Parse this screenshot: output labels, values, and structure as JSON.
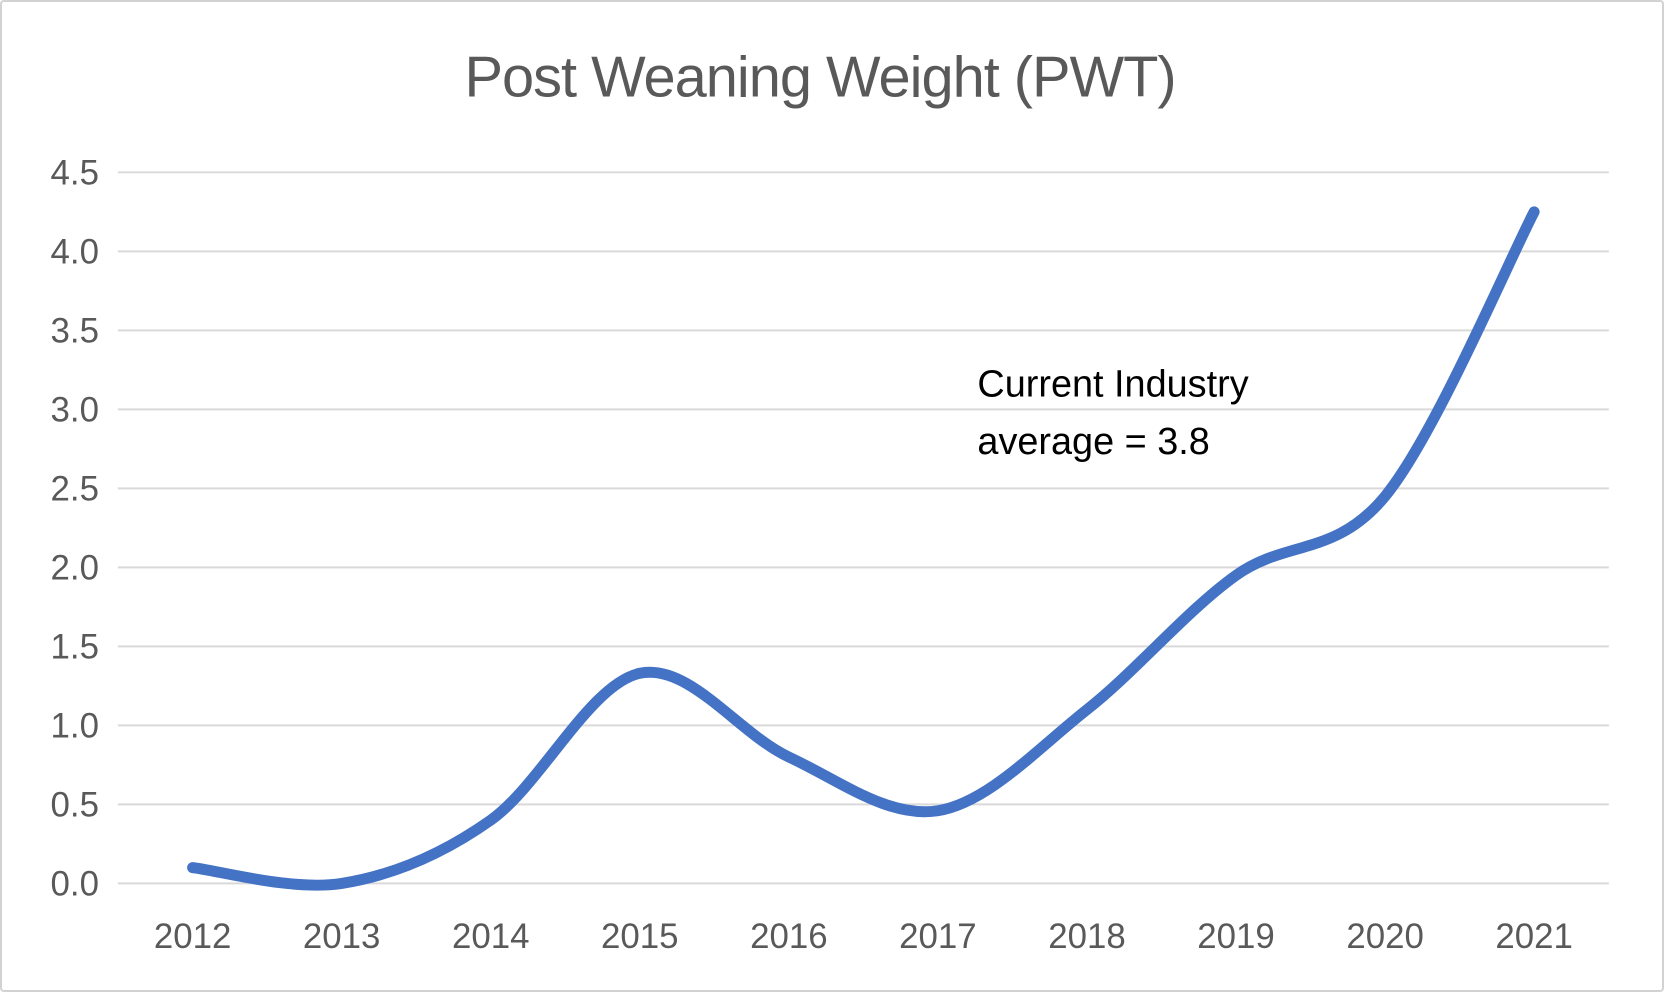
{
  "page": {
    "background": "#FFFFFF",
    "border_color": "#D2D2D2"
  },
  "chart_data": {
    "type": "line",
    "title": "Post Weaning Weight (PWT)",
    "categories": [
      "2012",
      "2013",
      "2014",
      "2015",
      "2016",
      "2017",
      "2018",
      "2019",
      "2020",
      "2021"
    ],
    "series": [
      {
        "name": "Post Weaning Weight (PWT)",
        "color": "#4472C4",
        "smooth": true,
        "values": [
          0.1,
          0.0,
          0.4,
          1.33,
          0.8,
          0.46,
          1.1,
          1.95,
          2.45,
          4.25
        ]
      }
    ],
    "xlabel": "",
    "ylabel": "",
    "ylim": [
      0.0,
      4.5
    ],
    "ytick_step": 0.5,
    "ytick_labels": [
      "0.0",
      "0.5",
      "1.0",
      "1.5",
      "2.0",
      "2.5",
      "3.0",
      "3.5",
      "4.0",
      "4.5"
    ],
    "grid": "horizontal",
    "gridline_color": "#D9D9D9",
    "axis_text_color": "#595959",
    "title_color": "#595959",
    "legend": "none",
    "annotation": {
      "lines": [
        "Current Industry",
        "average = 3.8"
      ],
      "color": "#000000"
    }
  }
}
